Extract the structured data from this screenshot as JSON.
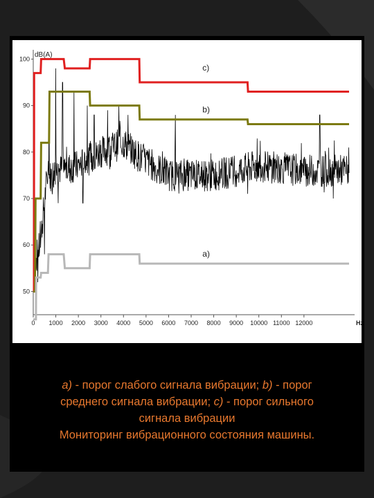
{
  "caption": {
    "line1_a": "a)",
    "line1_text": " - порог слабого сигнала вибрации; ",
    "line1_b": "b)",
    "line1_tail": " - порог",
    "line2_text": "среднего сигнала вибрации; ",
    "line2_c": "c)",
    "line2_tail": " - порог сильного",
    "line3": "сигнала вибрации",
    "line4": "Мониторинг вибрационного состояния машины."
  },
  "chart_data": {
    "type": "line",
    "ylabel": "dB(A)",
    "xlabel": "Hz",
    "xlim": [
      0,
      14000
    ],
    "ylim": [
      45,
      102
    ],
    "xticks": [
      "0",
      "1000",
      "2000",
      "3000",
      "4000",
      "5000",
      "6000",
      "7000",
      "8000",
      "9000",
      "10000",
      "11000",
      "12000",
      "Hz"
    ],
    "xtick_values": [
      0,
      1000,
      2000,
      3000,
      4000,
      5000,
      6000,
      7000,
      8000,
      9000,
      10000,
      11000,
      12000
    ],
    "yticks": [
      "100",
      "90",
      "80",
      "70",
      "60",
      "50"
    ],
    "ytick_values": [
      100,
      90,
      80,
      70,
      60,
      50
    ],
    "grid": false,
    "series": [
      {
        "name": "c)",
        "color": "#e02020",
        "x": [
          0,
          30,
          40,
          330,
          350,
          1350,
          1400,
          2500,
          2520,
          4700,
          4720,
          9500,
          9520,
          14000
        ],
        "y": [
          50,
          50,
          97,
          97,
          100,
          100,
          98,
          98,
          100,
          100,
          95,
          95,
          93,
          93
        ]
      },
      {
        "name": "b)",
        "color": "#7c7a10",
        "x": [
          0,
          80,
          100,
          330,
          350,
          700,
          720,
          2500,
          2520,
          4700,
          4720,
          9500,
          9520,
          14000
        ],
        "y": [
          50,
          50,
          70,
          70,
          82,
          82,
          93,
          93,
          90,
          90,
          87,
          87,
          86,
          86
        ]
      },
      {
        "name": "a)",
        "color": "#b8b8b8",
        "x": [
          0,
          120,
          130,
          330,
          350,
          650,
          680,
          1350,
          1400,
          2500,
          2520,
          4700,
          4720,
          14000
        ],
        "y": [
          44,
          44,
          53,
          53,
          54,
          54,
          58,
          58,
          55,
          55,
          58,
          58,
          56,
          56
        ]
      }
    ],
    "signal": {
      "color": "#000000",
      "baseline": [
        [
          0,
          55
        ],
        [
          300,
          60
        ],
        [
          600,
          74
        ],
        [
          1000,
          76
        ],
        [
          2000,
          77
        ],
        [
          3000,
          80
        ],
        [
          4000,
          82
        ],
        [
          4700,
          79
        ],
        [
          6000,
          75
        ],
        [
          8000,
          75
        ],
        [
          10000,
          77
        ],
        [
          12000,
          76
        ],
        [
          14000,
          76
        ]
      ],
      "noise": 3.5,
      "peaks": [
        [
          700,
          92
        ],
        [
          1000,
          98
        ],
        [
          1300,
          95
        ],
        [
          1800,
          93
        ],
        [
          2400,
          90
        ],
        [
          2700,
          88
        ],
        [
          3300,
          89
        ],
        [
          3800,
          90
        ],
        [
          4200,
          88
        ],
        [
          6300,
          88
        ],
        [
          12700,
          88
        ]
      ],
      "dips": [
        [
          200,
          52
        ],
        [
          500,
          58
        ],
        [
          1100,
          69
        ],
        [
          2200,
          69
        ],
        [
          9500,
          71
        ],
        [
          13300,
          70
        ]
      ]
    }
  }
}
